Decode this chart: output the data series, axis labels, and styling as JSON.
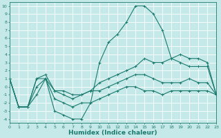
{
  "background_color": "#c5e8e8",
  "grid_color": "#ffffff",
  "line_color": "#1a7a6e",
  "line_width": 0.8,
  "marker": "+",
  "marker_size": 3,
  "series": [
    {
      "x": [
        0,
        1,
        2,
        3,
        4,
        5,
        6,
        7,
        8,
        9,
        10,
        11,
        12,
        13,
        14,
        15,
        16,
        17,
        18,
        19,
        20,
        21,
        22,
        23
      ],
      "y": [
        1,
        -2.5,
        -2.5,
        1,
        1,
        -3,
        -3.5,
        -4,
        -4,
        -2,
        3,
        5.5,
        6.5,
        8,
        10,
        10,
        9,
        7,
        3.5,
        3,
        2.5,
        2.5,
        2.5,
        -1
      ]
    },
    {
      "x": [
        0,
        1,
        2,
        3,
        4,
        5,
        6,
        7,
        8,
        9,
        10,
        11,
        12,
        13,
        14,
        15,
        16,
        17,
        18,
        19,
        20,
        21,
        22,
        23
      ],
      "y": [
        1,
        -2.5,
        -2.5,
        1,
        1.5,
        -0.5,
        -0.5,
        -1,
        -1,
        -0.5,
        0.5,
        1,
        1.5,
        2,
        2.5,
        3.5,
        3,
        3,
        3.5,
        4,
        3.5,
        3.5,
        3,
        -1
      ]
    },
    {
      "x": [
        0,
        1,
        2,
        3,
        4,
        5,
        6,
        7,
        8,
        9,
        10,
        11,
        12,
        13,
        14,
        15,
        16,
        17,
        18,
        19,
        20,
        21,
        22,
        23
      ],
      "y": [
        1,
        -2.5,
        -2.5,
        0,
        1,
        -0.5,
        -1,
        -1.5,
        -1,
        -0.5,
        -0.5,
        0,
        0.5,
        1,
        1.5,
        1.5,
        1,
        0.5,
        0.5,
        0.5,
        1,
        0.5,
        0.5,
        -1
      ]
    },
    {
      "x": [
        0,
        1,
        2,
        3,
        4,
        5,
        6,
        7,
        8,
        9,
        10,
        11,
        12,
        13,
        14,
        15,
        16,
        17,
        18,
        19,
        20,
        21,
        22,
        23
      ],
      "y": [
        1,
        -2.5,
        -2.5,
        -1,
        1,
        -1.5,
        -2,
        -2.5,
        -2,
        -2,
        -1.5,
        -1,
        -0.5,
        0,
        0,
        -0.5,
        -0.5,
        -1,
        -0.5,
        -0.5,
        -0.5,
        -0.5,
        -0.5,
        -1
      ]
    }
  ],
  "xlabel": "Humidex (Indice chaleur)",
  "xlim": [
    0,
    23
  ],
  "xticks": [
    0,
    1,
    2,
    3,
    4,
    5,
    6,
    7,
    8,
    9,
    10,
    11,
    12,
    13,
    14,
    15,
    16,
    17,
    18,
    19,
    20,
    21,
    22,
    23
  ],
  "xlabel_fontsize": 6.5,
  "xtick_fontsize": 4.5,
  "ylim": [
    -4.5,
    10.5
  ],
  "yticks": [
    -4,
    -3,
    -2,
    -1,
    0,
    1,
    2,
    3,
    4,
    5,
    6,
    7,
    8,
    9,
    10
  ],
  "ytick_fontsize": 4.5
}
